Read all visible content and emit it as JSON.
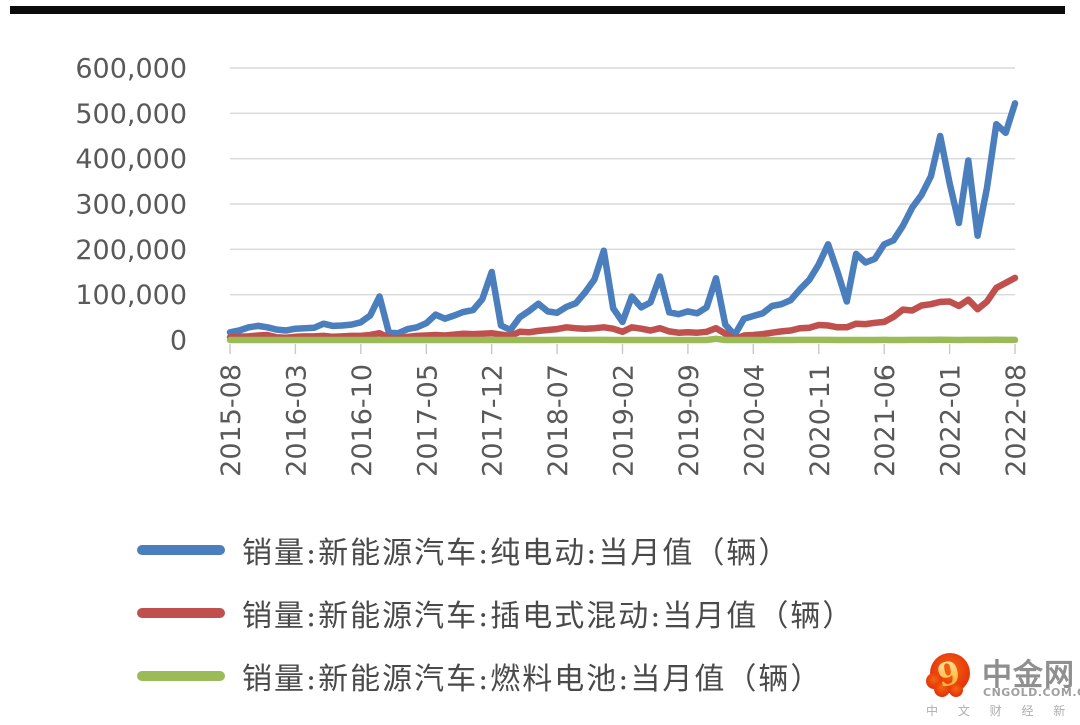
{
  "page": {
    "background": "#ffffff",
    "top_bar_color": "#0b0b0b"
  },
  "chart_data": {
    "type": "line",
    "title": "",
    "xlabel": "",
    "ylabel": "",
    "ylim": [
      0,
      600000
    ],
    "grid": true,
    "legend_position": "bottom-left",
    "x_labels_rotation": 90,
    "gridline_color": "#D9D9D9",
    "tick_color": "#C8C8C8",
    "axis_text_color": "#595959",
    "y_tick_values": [
      600000,
      500000,
      400000,
      300000,
      200000,
      100000,
      0
    ],
    "y_tick_labels": [
      "600,000",
      "500,000",
      "400,000",
      "300,000",
      "200,000",
      "100,000",
      "0"
    ],
    "x_tick_labels": [
      "2015-08",
      "2016-03",
      "2016-10",
      "2017-05",
      "2017-12",
      "2018-07",
      "2019-02",
      "2019-09",
      "2020-04",
      "2020-11",
      "2021-06",
      "2022-01",
      "2022-08"
    ],
    "x_tick_indices": [
      0,
      7,
      14,
      21,
      28,
      35,
      42,
      49,
      56,
      63,
      70,
      77,
      84
    ],
    "months": [
      "2015-08",
      "2015-09",
      "2015-10",
      "2015-11",
      "2015-12",
      "2016-01",
      "2016-02",
      "2016-03",
      "2016-04",
      "2016-05",
      "2016-06",
      "2016-07",
      "2016-08",
      "2016-09",
      "2016-10",
      "2016-11",
      "2016-12",
      "2017-01",
      "2017-02",
      "2017-03",
      "2017-04",
      "2017-05",
      "2017-06",
      "2017-07",
      "2017-08",
      "2017-09",
      "2017-10",
      "2017-11",
      "2017-12",
      "2018-01",
      "2018-02",
      "2018-03",
      "2018-04",
      "2018-05",
      "2018-06",
      "2018-07",
      "2018-08",
      "2018-09",
      "2018-10",
      "2018-11",
      "2018-12",
      "2019-01",
      "2019-02",
      "2019-03",
      "2019-04",
      "2019-05",
      "2019-06",
      "2019-07",
      "2019-08",
      "2019-09",
      "2019-10",
      "2019-11",
      "2019-12",
      "2020-01",
      "2020-02",
      "2020-03",
      "2020-04",
      "2020-05",
      "2020-06",
      "2020-07",
      "2020-08",
      "2020-09",
      "2020-10",
      "2020-11",
      "2020-12",
      "2021-01",
      "2021-02",
      "2021-03",
      "2021-04",
      "2021-05",
      "2021-06",
      "2021-07",
      "2021-08",
      "2021-09",
      "2021-10",
      "2021-11",
      "2021-12",
      "2022-01",
      "2022-02",
      "2022-03",
      "2022-04",
      "2022-05",
      "2022-06",
      "2022-07",
      "2022-08"
    ],
    "series": [
      {
        "name": "销量:新能源汽车:纯电动:当月值（辆）",
        "color": "#4A7EBD",
        "values": [
          17000,
          21000,
          28000,
          31000,
          28000,
          23000,
          21000,
          25000,
          26000,
          27000,
          36000,
          31000,
          32000,
          34000,
          39000,
          54000,
          96000,
          16000,
          15000,
          24000,
          28000,
          37000,
          56000,
          47000,
          54000,
          62000,
          66000,
          90000,
          150000,
          32000,
          22000,
          50000,
          64000,
          80000,
          63000,
          60000,
          73000,
          81000,
          105000,
          134000,
          197000,
          70000,
          40000,
          96000,
          72000,
          83000,
          140000,
          61000,
          57000,
          63000,
          59000,
          72000,
          136000,
          34000,
          11000,
          47000,
          53000,
          59000,
          75000,
          79000,
          88000,
          112000,
          133000,
          167000,
          211000,
          151000,
          85000,
          190000,
          171000,
          179000,
          211000,
          220000,
          252000,
          292000,
          320000,
          361000,
          450000,
          346000,
          258000,
          396000,
          230000,
          336000,
          476000,
          457000,
          522000
        ]
      },
      {
        "name": "销量:新能源汽车:插电式混动:当月值（辆）",
        "color": "#C0504D",
        "values": [
          6000,
          7000,
          8000,
          10000,
          11000,
          6000,
          5000,
          7000,
          8000,
          8000,
          9000,
          7000,
          8000,
          9000,
          9000,
          11000,
          15000,
          5000,
          4000,
          7000,
          9000,
          10000,
          11000,
          10000,
          12000,
          14000,
          13000,
          14000,
          15000,
          12000,
          9000,
          18000,
          17000,
          20000,
          22000,
          24000,
          28000,
          26000,
          25000,
          26000,
          28000,
          25000,
          18000,
          28000,
          25000,
          21000,
          26000,
          19000,
          16000,
          17000,
          16000,
          18000,
          26000,
          14000,
          2000,
          10000,
          11000,
          13000,
          16000,
          19000,
          21000,
          26000,
          27000,
          33000,
          32000,
          28000,
          28000,
          36000,
          35000,
          38000,
          40000,
          51000,
          67000,
          65000,
          76000,
          79000,
          84000,
          85000,
          75000,
          89000,
          68000,
          85000,
          115000,
          126000,
          137000
        ]
      },
      {
        "name": "销量:新能源汽车:燃料电池:当月值（辆）",
        "color": "#9BBB59",
        "values": [
          10,
          10,
          10,
          10,
          20,
          10,
          10,
          10,
          20,
          20,
          30,
          20,
          20,
          30,
          30,
          40,
          60,
          10,
          10,
          20,
          20,
          30,
          40,
          30,
          40,
          50,
          50,
          60,
          80,
          30,
          20,
          50,
          60,
          80,
          100,
          120,
          140,
          130,
          120,
          130,
          150,
          60,
          20,
          90,
          80,
          70,
          110,
          60,
          50,
          60,
          50,
          70,
          2700,
          20,
          10,
          30,
          40,
          50,
          90,
          100,
          110,
          130,
          140,
          180,
          230,
          50,
          30,
          100,
          90,
          100,
          160,
          70,
          90,
          150,
          120,
          170,
          370,
          190,
          110,
          230,
          120,
          180,
          450,
          290,
          300
        ]
      }
    ]
  },
  "logo": {
    "title": "中金网",
    "url_text": "CNGOLD.COM.CN",
    "tagline": "中 文 财 经 新 媒 体"
  }
}
